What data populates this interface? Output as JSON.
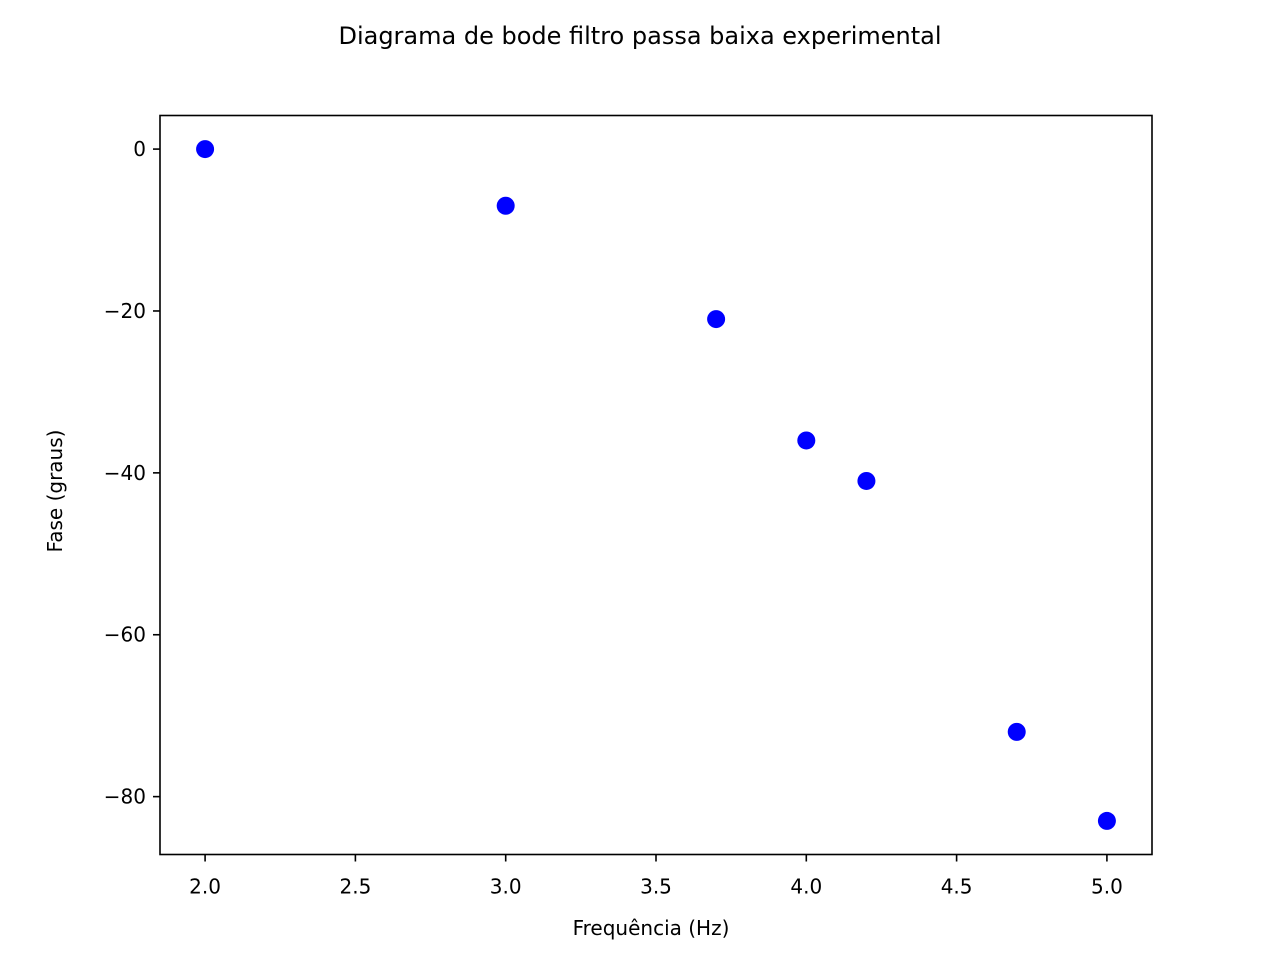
{
  "chart_data": {
    "type": "scatter",
    "title": "Diagrama de bode filtro passa baixa experimental",
    "xlabel": "Frequência (Hz)",
    "ylabel": "Fase (graus)",
    "xlim": [
      1.85,
      5.15
    ],
    "ylim": [
      -87.15,
      4.15
    ],
    "x_ticks": [
      2.0,
      2.5,
      3.0,
      3.5,
      4.0,
      4.5,
      5.0
    ],
    "x_tick_labels": [
      "2.0",
      "2.5",
      "3.0",
      "3.5",
      "4.0",
      "4.5",
      "5.0"
    ],
    "y_ticks": [
      0,
      -20,
      -40,
      -60,
      -80
    ],
    "y_tick_labels": [
      "0",
      "−20",
      "−40",
      "−60",
      "−80"
    ],
    "grid": false,
    "series": [
      {
        "color": "#0000ff",
        "x": [
          2.0,
          3.0,
          3.7,
          4.0,
          4.2,
          4.7,
          5.0
        ],
        "y": [
          0,
          -7,
          -21,
          -36,
          -41,
          -72,
          -83
        ]
      }
    ]
  }
}
